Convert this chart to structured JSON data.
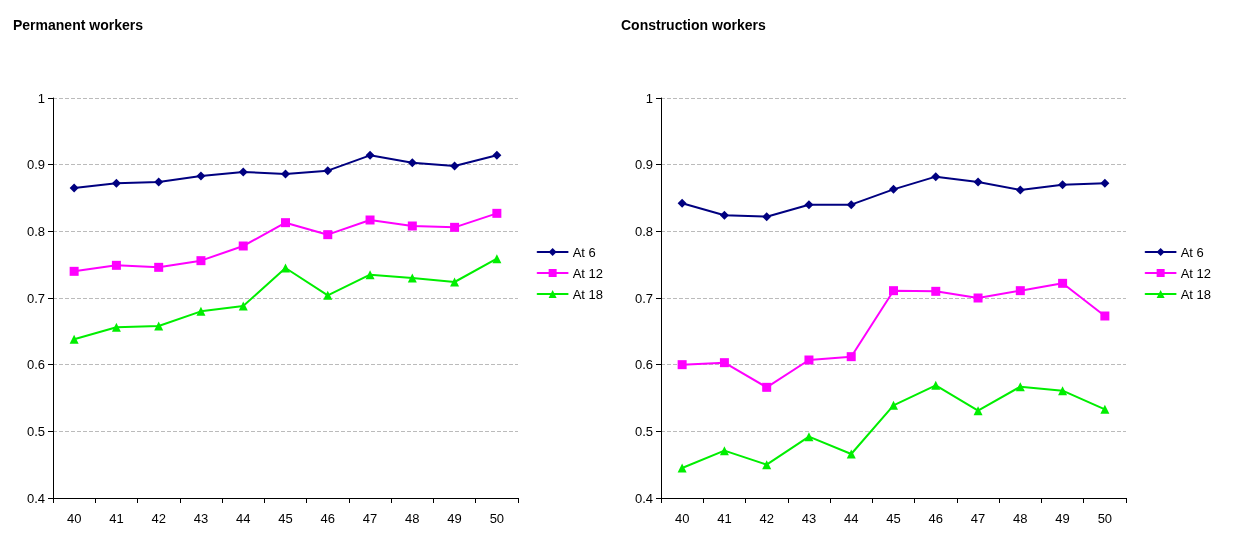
{
  "chart_data": [
    {
      "type": "line",
      "title": "Permanent workers",
      "categories": [
        "40",
        "41",
        "42",
        "43",
        "44",
        "45",
        "46",
        "47",
        "48",
        "49",
        "50"
      ],
      "ylim": [
        0.4,
        1
      ],
      "yticks": [
        0.4,
        0.5,
        0.6,
        0.7,
        0.8,
        0.9,
        1
      ],
      "grid": "y",
      "legend": "right",
      "series": [
        {
          "name": "At 6",
          "color": "#000080",
          "marker": "diamond",
          "values": [
            0.865,
            0.872,
            0.874,
            0.883,
            0.889,
            0.886,
            0.891,
            0.914,
            0.903,
            0.898,
            0.914
          ]
        },
        {
          "name": "At 12",
          "color": "#ff00ff",
          "marker": "square",
          "values": [
            0.74,
            0.749,
            0.746,
            0.756,
            0.778,
            0.813,
            0.795,
            0.817,
            0.808,
            0.806,
            0.827
          ]
        },
        {
          "name": "At 18",
          "color": "#00ee00",
          "marker": "triangle",
          "values": [
            0.638,
            0.656,
            0.658,
            0.68,
            0.688,
            0.745,
            0.704,
            0.735,
            0.73,
            0.724,
            0.759
          ]
        }
      ]
    },
    {
      "type": "line",
      "title": "Construction workers",
      "categories": [
        "40",
        "41",
        "42",
        "43",
        "44",
        "45",
        "46",
        "47",
        "48",
        "49",
        "50"
      ],
      "ylim": [
        0.4,
        1
      ],
      "yticks": [
        0.4,
        0.5,
        0.6,
        0.7,
        0.8,
        0.9,
        1
      ],
      "grid": "y",
      "legend": "right",
      "series": [
        {
          "name": "At 6",
          "color": "#000080",
          "marker": "diamond",
          "values": [
            0.842,
            0.824,
            0.822,
            0.84,
            0.84,
            0.863,
            0.882,
            0.874,
            0.862,
            0.87,
            0.872
          ]
        },
        {
          "name": "At 12",
          "color": "#ff00ff",
          "marker": "square",
          "values": [
            0.6,
            0.603,
            0.566,
            0.607,
            0.612,
            0.711,
            0.71,
            0.7,
            0.711,
            0.722,
            0.673
          ]
        },
        {
          "name": "At 18",
          "color": "#00ee00",
          "marker": "triangle",
          "values": [
            0.445,
            0.471,
            0.45,
            0.492,
            0.466,
            0.539,
            0.569,
            0.531,
            0.567,
            0.561,
            0.533
          ]
        }
      ]
    }
  ]
}
